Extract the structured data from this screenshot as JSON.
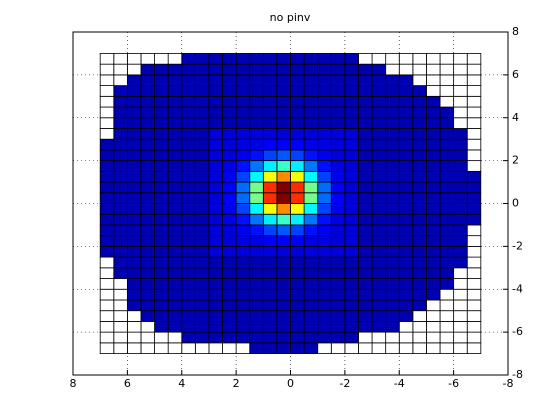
{
  "chart_data": {
    "type": "heatmap",
    "title": "no pinv",
    "colormap": "jet",
    "clim": [
      0,
      1
    ],
    "edge_color": "#000000",
    "grid": true,
    "y_axis_location": "right",
    "xlim": [
      8,
      -8
    ],
    "ylim": [
      -8,
      8
    ],
    "xticks": [
      8,
      6,
      4,
      2,
      0,
      -2,
      -4,
      -6,
      -8
    ],
    "yticks": [
      -8,
      -6,
      -4,
      -2,
      0,
      2,
      4,
      6,
      8
    ],
    "x": [
      -7,
      -6.5,
      -6,
      -5.5,
      -5,
      -4.5,
      -4,
      -3.5,
      -3,
      -2.5,
      -2,
      -1.5,
      -1,
      -0.5,
      0,
      0.5,
      1,
      1.5,
      2,
      2.5,
      3,
      3.5,
      4,
      4.5,
      5,
      5.5,
      6,
      6.5,
      7
    ],
    "y": [
      -7,
      -6.5,
      -6,
      -5.5,
      -5,
      -4.5,
      -4,
      -3.5,
      -3,
      -2.5,
      -2,
      -1.5,
      -1,
      -0.5,
      0,
      0.5,
      1,
      1.5,
      2,
      2.5,
      3,
      3.5,
      4,
      4.5,
      5,
      5.5,
      6,
      6.5,
      7
    ],
    "z": [
      [
        null,
        null,
        null,
        null,
        null,
        null,
        null,
        null,
        null,
        null,
        null,
        null,
        0.05,
        0.05,
        0.05,
        0.05,
        0.05,
        null,
        null,
        null,
        null,
        null,
        null,
        null,
        null,
        null,
        null,
        null
      ],
      [
        null,
        null,
        null,
        null,
        null,
        null,
        null,
        null,
        null,
        0.05,
        0.05,
        0.05,
        0.05,
        0.05,
        0.05,
        0.05,
        0.05,
        0.05,
        0.05,
        0.05,
        0.05,
        0.05,
        null,
        null,
        null,
        null,
        null,
        null
      ],
      [
        null,
        null,
        null,
        null,
        null,
        null,
        0.05,
        0.05,
        0.05,
        0.05,
        0.05,
        0.05,
        0.05,
        0.05,
        0.05,
        0.05,
        0.05,
        0.05,
        0.05,
        0.05,
        0.05,
        0.05,
        0.05,
        0.05,
        null,
        null,
        null,
        null
      ],
      [
        null,
        null,
        null,
        null,
        null,
        0.05,
        0.05,
        0.05,
        0.05,
        0.05,
        0.05,
        0.05,
        0.05,
        0.05,
        0.05,
        0.05,
        0.05,
        0.05,
        0.05,
        0.05,
        0.05,
        0.05,
        0.05,
        0.05,
        0.05,
        null,
        null,
        null
      ],
      [
        null,
        null,
        null,
        null,
        0.05,
        0.05,
        0.05,
        0.05,
        0.05,
        0.05,
        0.05,
        0.05,
        0.05,
        0.05,
        0.05,
        0.05,
        0.05,
        0.05,
        0.05,
        0.05,
        0.05,
        0.05,
        0.05,
        0.05,
        0.05,
        0.05,
        null,
        null
      ],
      [
        null,
        null,
        null,
        0.05,
        0.05,
        0.05,
        0.05,
        0.05,
        0.05,
        0.05,
        0.05,
        0.05,
        0.05,
        0.05,
        0.05,
        0.05,
        0.05,
        0.05,
        0.05,
        0.05,
        0.05,
        0.05,
        0.05,
        0.05,
        0.05,
        0.05,
        null,
        null
      ],
      [
        null,
        null,
        0.05,
        0.05,
        0.05,
        0.05,
        0.05,
        0.05,
        0.05,
        0.05,
        0.05,
        0.05,
        0.05,
        0.05,
        0.05,
        0.05,
        0.05,
        0.05,
        0.05,
        0.05,
        0.05,
        0.05,
        0.05,
        0.05,
        0.05,
        0.05,
        null,
        null
      ],
      [
        null,
        null,
        0.05,
        0.05,
        0.05,
        0.05,
        0.05,
        0.05,
        0.05,
        0.05,
        0.05,
        0.05,
        0.05,
        0.05,
        0.05,
        0.05,
        0.05,
        0.05,
        0.05,
        0.05,
        0.05,
        0.05,
        0.05,
        0.05,
        0.05,
        0.05,
        0.05,
        null
      ],
      [
        null,
        0.05,
        0.05,
        0.05,
        0.05,
        0.05,
        0.05,
        0.05,
        0.05,
        0.05,
        0.05,
        0.05,
        0.05,
        0.05,
        0.05,
        0.05,
        0.05,
        0.05,
        0.05,
        0.05,
        0.05,
        0.05,
        0.05,
        0.05,
        0.05,
        0.05,
        0.05,
        null
      ],
      [
        null,
        0.05,
        0.05,
        0.05,
        0.05,
        0.05,
        0.05,
        0.05,
        0.05,
        0.09,
        0.09,
        0.09,
        0.09,
        0.09,
        0.09,
        0.09,
        0.09,
        0.09,
        0.09,
        0.09,
        0.05,
        0.05,
        0.05,
        0.05,
        0.05,
        0.05,
        0.05,
        0.05
      ],
      [
        null,
        0.05,
        0.05,
        0.05,
        0.05,
        0.05,
        0.05,
        0.05,
        0.05,
        0.09,
        0.09,
        0.1,
        0.1,
        0.12,
        0.12,
        0.12,
        0.1,
        0.1,
        0.09,
        0.09,
        0.05,
        0.05,
        0.05,
        0.05,
        0.05,
        0.05,
        0.05,
        0.05
      ],
      [
        null,
        0.05,
        0.05,
        0.05,
        0.05,
        0.05,
        0.05,
        0.05,
        0.05,
        0.09,
        0.09,
        0.11,
        0.14,
        0.19,
        0.21,
        0.19,
        0.14,
        0.11,
        0.09,
        0.09,
        0.05,
        0.05,
        0.05,
        0.05,
        0.05,
        0.05,
        0.05,
        0.05
      ],
      [
        0.05,
        0.05,
        0.05,
        0.05,
        0.05,
        0.05,
        0.05,
        0.05,
        0.05,
        0.09,
        0.1,
        0.14,
        0.24,
        0.36,
        0.43,
        0.36,
        0.24,
        0.14,
        0.1,
        0.09,
        0.05,
        0.05,
        0.05,
        0.05,
        0.05,
        0.05,
        0.05,
        0.05
      ],
      [
        0.05,
        0.05,
        0.05,
        0.05,
        0.05,
        0.05,
        0.05,
        0.05,
        0.05,
        0.09,
        0.11,
        0.19,
        0.37,
        0.62,
        0.74,
        0.62,
        0.37,
        0.19,
        0.11,
        0.09,
        0.05,
        0.05,
        0.05,
        0.05,
        0.05,
        0.05,
        0.05,
        0.05
      ],
      [
        0.05,
        0.05,
        0.05,
        0.05,
        0.05,
        0.05,
        0.05,
        0.05,
        0.05,
        0.09,
        0.12,
        0.23,
        0.49,
        0.83,
        1.0,
        0.83,
        0.49,
        0.23,
        0.12,
        0.09,
        0.05,
        0.05,
        0.05,
        0.05,
        0.05,
        0.05,
        0.05,
        0.05
      ],
      [
        0.05,
        0.05,
        0.05,
        0.05,
        0.05,
        0.05,
        0.05,
        0.05,
        0.05,
        0.09,
        0.12,
        0.23,
        0.49,
        0.83,
        1.0,
        0.83,
        0.49,
        0.23,
        0.12,
        0.09,
        0.05,
        0.05,
        0.05,
        0.05,
        0.05,
        0.05,
        0.05,
        0.05
      ],
      [
        0.05,
        0.05,
        0.05,
        0.05,
        0.05,
        0.05,
        0.05,
        0.05,
        0.05,
        0.09,
        0.11,
        0.19,
        0.37,
        0.62,
        0.74,
        0.62,
        0.37,
        0.19,
        0.11,
        0.09,
        0.05,
        0.05,
        0.05,
        0.05,
        0.05,
        0.05,
        0.05,
        0.05
      ],
      [
        null,
        0.05,
        0.05,
        0.05,
        0.05,
        0.05,
        0.05,
        0.05,
        0.05,
        0.09,
        0.1,
        0.14,
        0.24,
        0.36,
        0.43,
        0.36,
        0.24,
        0.14,
        0.1,
        0.09,
        0.05,
        0.05,
        0.05,
        0.05,
        0.05,
        0.05,
        0.05,
        0.05
      ],
      [
        null,
        0.05,
        0.05,
        0.05,
        0.05,
        0.05,
        0.05,
        0.05,
        0.05,
        0.09,
        0.09,
        0.11,
        0.14,
        0.19,
        0.21,
        0.19,
        0.14,
        0.11,
        0.09,
        0.09,
        0.05,
        0.05,
        0.05,
        0.05,
        0.05,
        0.05,
        0.05,
        0.05
      ],
      [
        null,
        0.05,
        0.05,
        0.05,
        0.05,
        0.05,
        0.05,
        0.05,
        0.05,
        0.09,
        0.09,
        0.1,
        0.1,
        0.12,
        0.12,
        0.12,
        0.1,
        0.1,
        0.09,
        0.09,
        0.05,
        0.05,
        0.05,
        0.05,
        0.05,
        0.05,
        0.05,
        0.05
      ],
      [
        null,
        0.05,
        0.05,
        0.05,
        0.05,
        0.05,
        0.05,
        0.05,
        0.05,
        0.09,
        0.09,
        0.09,
        0.09,
        0.09,
        0.09,
        0.09,
        0.09,
        0.09,
        0.09,
        0.09,
        0.05,
        0.05,
        0.05,
        0.05,
        0.05,
        0.05,
        0.05,
        null
      ],
      [
        null,
        null,
        0.05,
        0.05,
        0.05,
        0.05,
        0.05,
        0.05,
        0.05,
        0.05,
        0.05,
        0.05,
        0.05,
        0.05,
        0.05,
        0.05,
        0.05,
        0.05,
        0.05,
        0.05,
        0.05,
        0.05,
        0.05,
        0.05,
        0.05,
        0.05,
        0.05,
        null
      ],
      [
        null,
        null,
        0.05,
        0.05,
        0.05,
        0.05,
        0.05,
        0.05,
        0.05,
        0.05,
        0.05,
        0.05,
        0.05,
        0.05,
        0.05,
        0.05,
        0.05,
        0.05,
        0.05,
        0.05,
        0.05,
        0.05,
        0.05,
        0.05,
        0.05,
        0.05,
        0.05,
        null
      ],
      [
        null,
        null,
        null,
        0.05,
        0.05,
        0.05,
        0.05,
        0.05,
        0.05,
        0.05,
        0.05,
        0.05,
        0.05,
        0.05,
        0.05,
        0.05,
        0.05,
        0.05,
        0.05,
        0.05,
        0.05,
        0.05,
        0.05,
        0.05,
        0.05,
        0.05,
        0.05,
        null
      ],
      [
        null,
        null,
        null,
        null,
        0.05,
        0.05,
        0.05,
        0.05,
        0.05,
        0.05,
        0.05,
        0.05,
        0.05,
        0.05,
        0.05,
        0.05,
        0.05,
        0.05,
        0.05,
        0.05,
        0.05,
        0.05,
        0.05,
        0.05,
        0.05,
        0.05,
        0.05,
        null
      ],
      [
        null,
        null,
        null,
        null,
        null,
        0.05,
        0.05,
        0.05,
        0.05,
        0.05,
        0.05,
        0.05,
        0.05,
        0.05,
        0.05,
        0.05,
        0.05,
        0.05,
        0.05,
        0.05,
        0.05,
        0.05,
        0.05,
        0.05,
        0.05,
        0.05,
        null,
        null
      ],
      [
        null,
        null,
        null,
        null,
        null,
        null,
        null,
        0.05,
        0.05,
        0.05,
        0.05,
        0.05,
        0.05,
        0.05,
        0.05,
        0.05,
        0.05,
        0.05,
        0.05,
        0.05,
        0.05,
        0.05,
        0.05,
        0.05,
        0.05,
        null,
        null,
        null
      ],
      [
        null,
        null,
        null,
        null,
        null,
        null,
        null,
        null,
        null,
        0.05,
        0.05,
        0.05,
        0.05,
        0.05,
        0.05,
        0.05,
        0.05,
        0.05,
        0.05,
        0.05,
        0.05,
        0.05,
        null,
        null,
        null,
        null,
        null,
        null
      ]
    ]
  }
}
